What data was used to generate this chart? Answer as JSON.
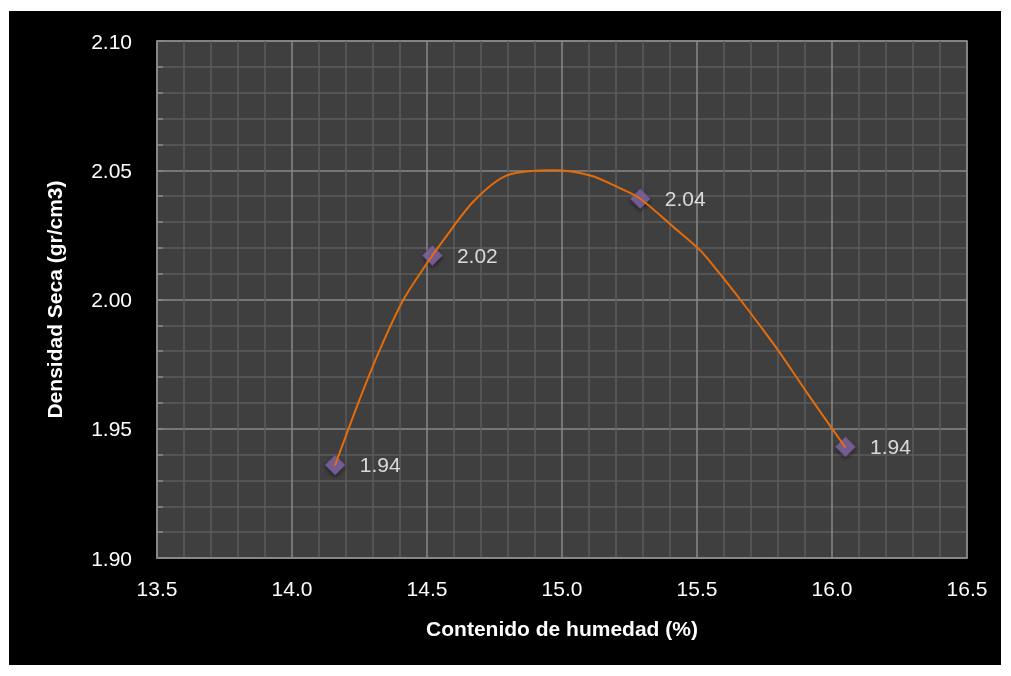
{
  "chart_data": {
    "type": "scatter",
    "xlabel": "Contenido de humedad (%)",
    "ylabel": "Densidad Seca (gr/cm3)",
    "xlim": [
      13.5,
      16.5
    ],
    "xticks": [
      13.5,
      {
        "value": 13.6,
        "label": null
      },
      {
        "value": 13.7,
        "label": null
      },
      {
        "value": 13.8,
        "label": null
      },
      {
        "value": 13.9,
        "label": null
      },
      {
        "value": 14,
        "label": "14.0"
      },
      {
        "value": 14.1,
        "label": null
      },
      {
        "value": 14.2,
        "label": null
      },
      {
        "value": 14.3,
        "label": null
      },
      {
        "value": 14.4,
        "label": null
      },
      14.5,
      {
        "value": 14.6,
        "label": null
      },
      {
        "value": 14.7,
        "label": null
      },
      {
        "value": 14.8,
        "label": null
      },
      {
        "value": 14.9,
        "label": null
      },
      {
        "value": 15,
        "label": "15.0"
      },
      {
        "value": 15.1,
        "label": null
      },
      {
        "value": 15.2,
        "label": null
      },
      {
        "value": 15.3,
        "label": null
      },
      {
        "value": 15.4,
        "label": null
      },
      15.5,
      {
        "value": 15.6,
        "label": null
      },
      {
        "value": 15.7,
        "label": null
      },
      {
        "value": 15.8,
        "label": null
      },
      {
        "value": 15.9,
        "label": null
      },
      {
        "value": 16,
        "label": "16.0"
      },
      {
        "value": 16.1,
        "label": null
      },
      {
        "value": 16.2,
        "label": null
      },
      {
        "value": 16.3,
        "label": null
      },
      {
        "value": 16.4,
        "label": null
      },
      16.5
    ],
    "ylim": [
      1.9,
      2.1
    ],
    "yticks": [
      {
        "value": 1.9,
        "label": "1.90"
      },
      {
        "value": 1.91,
        "label": null
      },
      {
        "value": 1.92,
        "label": null
      },
      {
        "value": 1.93,
        "label": null
      },
      {
        "value": 1.94,
        "label": null
      },
      1.95,
      {
        "value": 1.96,
        "label": null
      },
      {
        "value": 1.97,
        "label": null
      },
      {
        "value": 1.98,
        "label": null
      },
      {
        "value": 1.99,
        "label": null
      },
      {
        "value": 2,
        "label": "2.00"
      },
      {
        "value": 2.01,
        "label": null
      },
      {
        "value": 2.02,
        "label": null
      },
      {
        "value": 2.03,
        "label": null
      },
      {
        "value": 2.04,
        "label": null
      },
      2.05,
      {
        "value": 2.06,
        "label": null
      },
      {
        "value": 2.07,
        "label": null
      },
      {
        "value": 2.08,
        "label": null
      },
      {
        "value": 2.09,
        "label": null
      },
      {
        "value": 2.1,
        "label": "2.10"
      }
    ],
    "grid": true,
    "marker": "diamond",
    "series": [
      {
        "color": "#8064a2",
        "x": [
          14.16,
          14.52,
          15.29,
          16.05
        ],
        "values": [
          1.936,
          2.017,
          2.039,
          1.943
        ],
        "value_labels": [
          "1.94",
          "2.02",
          "2.04",
          "1.94"
        ]
      },
      {
        "type": "line",
        "color": "#e46c0a",
        "marker": "none",
        "x": [
          14.16,
          14.253,
          14.327,
          14.413,
          14.5,
          14.561,
          14.673,
          14.796,
          14.969,
          15.105,
          15.216,
          15.29,
          15.413,
          15.512,
          15.561,
          15.66,
          15.796,
          15.907,
          16.048
        ],
        "values": [
          1.936,
          1.962,
          1.981,
          2.0,
          2.014,
          2.023,
          2.038,
          2.048,
          2.05,
          2.048,
          2.043,
          2.039,
          2.028,
          2.019,
          2.013,
          2.0,
          1.981,
          1.964,
          1.943
        ]
      }
    ]
  }
}
